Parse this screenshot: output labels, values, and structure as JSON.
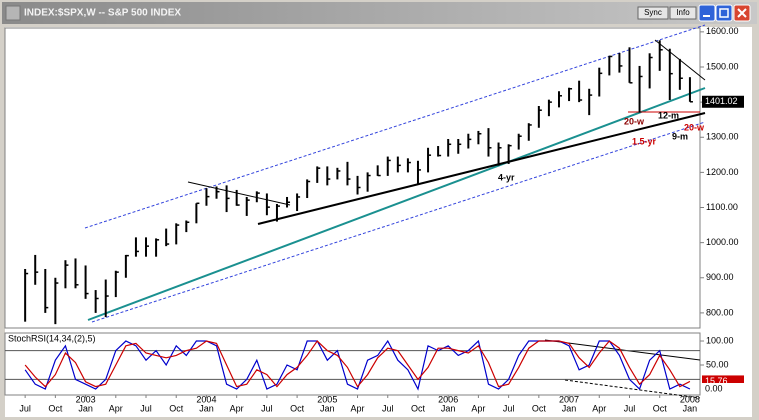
{
  "window": {
    "title": "INDEX:$SPX,W -- S&P 500 INDEX",
    "buttons": [
      "Sync",
      "Info"
    ]
  },
  "chart_data": [
    {
      "type": "ohlc",
      "x": [
        "2002-07",
        "2002-08",
        "2002-09",
        "2002-10",
        "2002-11",
        "2002-12",
        "2003-01",
        "2003-02",
        "2003-03",
        "2003-04",
        "2003-05",
        "2003-06",
        "2003-07",
        "2003-08",
        "2003-09",
        "2003-10",
        "2003-11",
        "2003-12",
        "2004-01",
        "2004-02",
        "2004-03",
        "2004-04",
        "2004-05",
        "2004-06",
        "2004-07",
        "2004-08",
        "2004-09",
        "2004-10",
        "2004-11",
        "2004-12",
        "2005-01",
        "2005-02",
        "2005-03",
        "2005-04",
        "2005-05",
        "2005-06",
        "2005-07",
        "2005-08",
        "2005-09",
        "2005-10",
        "2005-11",
        "2005-12",
        "2006-01",
        "2006-02",
        "2006-03",
        "2006-04",
        "2006-05",
        "2006-06",
        "2006-07",
        "2006-08",
        "2006-09",
        "2006-10",
        "2006-11",
        "2006-12",
        "2007-01",
        "2007-02",
        "2007-03",
        "2007-04",
        "2007-05",
        "2007-06",
        "2007-07",
        "2007-08",
        "2007-09",
        "2007-10",
        "2007-11",
        "2007-12",
        "2008-01"
      ],
      "high": [
        925,
        965,
        925,
        900,
        950,
        955,
        935,
        865,
        895,
        920,
        965,
        1015,
        1015,
        1012,
        1040,
        1055,
        1063,
        1112,
        1155,
        1160,
        1163,
        1150,
        1130,
        1146,
        1140,
        1110,
        1130,
        1140,
        1180,
        1217,
        1217,
        1213,
        1230,
        1190,
        1200,
        1220,
        1245,
        1245,
        1240,
        1233,
        1270,
        1275,
        1295,
        1295,
        1310,
        1318,
        1326,
        1285,
        1280,
        1310,
        1340,
        1389,
        1407,
        1431,
        1441,
        1461,
        1438,
        1498,
        1532,
        1540,
        1556,
        1503,
        1539,
        1576,
        1552,
        1523,
        1471
      ],
      "low": [
        775,
        880,
        800,
        768,
        870,
        870,
        840,
        800,
        788,
        845,
        900,
        960,
        960,
        960,
        990,
        995,
        1030,
        1055,
        1105,
        1125,
        1087,
        1105,
        1076,
        1115,
        1078,
        1060,
        1100,
        1090,
        1127,
        1170,
        1163,
        1180,
        1163,
        1137,
        1145,
        1190,
        1190,
        1200,
        1200,
        1168,
        1200,
        1245,
        1245,
        1253,
        1268,
        1280,
        1245,
        1219,
        1224,
        1265,
        1290,
        1327,
        1360,
        1385,
        1403,
        1400,
        1363,
        1416,
        1476,
        1484,
        1455,
        1370,
        1439,
        1489,
        1406,
        1435,
        1401
      ],
      "close": [
        912,
        916,
        815,
        885,
        936,
        880,
        855,
        841,
        848,
        916,
        963,
        975,
        990,
        1008,
        996,
        1050,
        1058,
        1112,
        1131,
        1145,
        1126,
        1107,
        1121,
        1141,
        1101,
        1104,
        1115,
        1130,
        1174,
        1212,
        1181,
        1204,
        1181,
        1157,
        1191,
        1191,
        1234,
        1220,
        1228,
        1207,
        1249,
        1248,
        1280,
        1280,
        1294,
        1310,
        1270,
        1270,
        1276,
        1303,
        1335,
        1377,
        1400,
        1418,
        1438,
        1406,
        1420,
        1482,
        1530,
        1503,
        1455,
        1473,
        1527,
        1549,
        1481,
        1468,
        1401
      ],
      "color": "#000000",
      "xlim": [
        "2002-05",
        "2008-02"
      ],
      "ylim": [
        757,
        1611
      ],
      "yticks": [
        {
          "value": 800,
          "label": "800.00"
        },
        {
          "value": 900,
          "label": "900.00"
        },
        {
          "value": 1000,
          "label": "1000.00"
        },
        {
          "value": 1100,
          "label": "1100.00"
        },
        {
          "value": 1200,
          "label": "1200.00"
        },
        {
          "value": 1300,
          "label": "1300.00"
        },
        {
          "value": 1400,
          "label": "1400.00"
        },
        {
          "value": 1500,
          "label": "1500.00"
        },
        {
          "value": 1600,
          "label": "1600.00"
        }
      ],
      "last_price": {
        "value": 1401.02,
        "label": "1401.02"
      },
      "annotations": [
        {
          "text": "20-w",
          "color": "#8b0000"
        },
        {
          "text": "12-m",
          "color": "#000000"
        },
        {
          "text": "20-w",
          "color": "#cc0000"
        },
        {
          "text": "9-m",
          "color": "#000000"
        },
        {
          "text": "1.5-yr",
          "color": "#cc0000"
        },
        {
          "text": "4-yr",
          "color": "#000000"
        }
      ]
    },
    {
      "type": "line",
      "title": "StochRSI(14,34,(2),5)",
      "x": [
        "2002-07",
        "2002-08",
        "2002-09",
        "2002-10",
        "2002-11",
        "2002-12",
        "2003-01",
        "2003-02",
        "2003-03",
        "2003-04",
        "2003-05",
        "2003-06",
        "2003-07",
        "2003-08",
        "2003-09",
        "2003-10",
        "2003-11",
        "2003-12",
        "2004-01",
        "2004-02",
        "2004-03",
        "2004-04",
        "2004-05",
        "2004-06",
        "2004-07",
        "2004-08",
        "2004-09",
        "2004-10",
        "2004-11",
        "2004-12",
        "2005-01",
        "2005-02",
        "2005-03",
        "2005-04",
        "2005-05",
        "2005-06",
        "2005-07",
        "2005-08",
        "2005-09",
        "2005-10",
        "2005-11",
        "2005-12",
        "2006-01",
        "2006-02",
        "2006-03",
        "2006-04",
        "2006-05",
        "2006-06",
        "2006-07",
        "2006-08",
        "2006-09",
        "2006-10",
        "2006-11",
        "2006-12",
        "2007-01",
        "2007-02",
        "2007-03",
        "2007-04",
        "2007-05",
        "2007-06",
        "2007-07",
        "2007-08",
        "2007-09",
        "2007-10",
        "2007-11",
        "2007-12",
        "2008-01"
      ],
      "series": [
        {
          "color": "#0000cc",
          "values": [
            40,
            10,
            0,
            60,
            90,
            20,
            10,
            0,
            20,
            80,
            100,
            90,
            60,
            80,
            50,
            90,
            70,
            100,
            100,
            90,
            10,
            0,
            20,
            60,
            0,
            10,
            50,
            40,
            100,
            100,
            60,
            80,
            10,
            0,
            60,
            70,
            100,
            60,
            40,
            0,
            90,
            80,
            90,
            70,
            80,
            100,
            10,
            0,
            20,
            70,
            100,
            100,
            100,
            100,
            90,
            40,
            50,
            100,
            100,
            70,
            20,
            0,
            60,
            80,
            0,
            10,
            0
          ],
          "last_value": {
            "value": 0,
            "label": "0.00"
          }
        },
        {
          "color": "#cc0000",
          "values": [
            50,
            25,
            5,
            30,
            75,
            55,
            15,
            5,
            10,
            50,
            90,
            95,
            75,
            70,
            65,
            70,
            80,
            85,
            100,
            95,
            50,
            5,
            10,
            40,
            30,
            5,
            30,
            45,
            70,
            100,
            80,
            70,
            45,
            5,
            30,
            65,
            85,
            80,
            50,
            20,
            45,
            85,
            85,
            80,
            75,
            90,
            55,
            5,
            10,
            45,
            85,
            100,
            100,
            100,
            95,
            65,
            45,
            75,
            100,
            85,
            45,
            10,
            30,
            70,
            40,
            5,
            15.76
          ],
          "last_value": {
            "value": 15.76,
            "label": "15.76"
          }
        }
      ],
      "xlim": [
        "2002-05",
        "2008-02"
      ],
      "ylim": [
        -12.5,
        116.7
      ],
      "yticks": [
        {
          "value": 50,
          "label": "50.00"
        },
        {
          "value": 100,
          "label": "100.00"
        }
      ],
      "reference_lines": [
        20,
        80
      ],
      "xticks": [
        {
          "value": "2002-07",
          "label": "Jul"
        },
        {
          "value": "2002-10",
          "label": "Oct"
        },
        {
          "value": "2003-01",
          "label": "Jan"
        },
        {
          "value": "2003-04",
          "label": "Apr"
        },
        {
          "value": "2003-07",
          "label": "Jul"
        },
        {
          "value": "2003-10",
          "label": "Oct"
        },
        {
          "value": "2004-01",
          "label": "Jan"
        },
        {
          "value": "2004-04",
          "label": "Apr"
        },
        {
          "value": "2004-07",
          "label": "Jul"
        },
        {
          "value": "2004-10",
          "label": "Oct"
        },
        {
          "value": "2005-01",
          "label": "Jan"
        },
        {
          "value": "2005-04",
          "label": "Apr"
        },
        {
          "value": "2005-07",
          "label": "Jul"
        },
        {
          "value": "2005-10",
          "label": "Oct"
        },
        {
          "value": "2006-01",
          "label": "Jan"
        },
        {
          "value": "2006-04",
          "label": "Apr"
        },
        {
          "value": "2006-07",
          "label": "Jul"
        },
        {
          "value": "2006-10",
          "label": "Oct"
        },
        {
          "value": "2007-01",
          "label": "Jan"
        },
        {
          "value": "2007-04",
          "label": "Apr"
        },
        {
          "value": "2007-07",
          "label": "Jul"
        },
        {
          "value": "2007-10",
          "label": "Oct"
        },
        {
          "value": "2008-01",
          "label": "Jan"
        }
      ],
      "year_ticks": [
        {
          "value": "2003-01",
          "label": "2003"
        },
        {
          "value": "2004-01",
          "label": "2004"
        },
        {
          "value": "2005-01",
          "label": "2005"
        },
        {
          "value": "2006-01",
          "label": "2006"
        },
        {
          "value": "2007-01",
          "label": "2007"
        },
        {
          "value": "2008-01",
          "label": "2008"
        }
      ]
    }
  ]
}
